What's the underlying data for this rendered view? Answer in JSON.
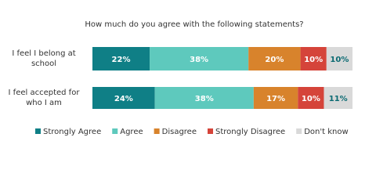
{
  "chart_data": {
    "type": "stacked_bar_horizontal",
    "title": "How much do you agree with the following statements?",
    "categories": [
      "I feel I belong at school",
      "I feel accepted for who I am"
    ],
    "series": [
      {
        "name": "Strongly Agree",
        "color": "#0f7f86",
        "values": [
          22,
          24
        ],
        "value_labels": [
          "22%",
          "24%"
        ]
      },
      {
        "name": "Agree",
        "color": "#5ec9bd",
        "values": [
          38,
          38
        ],
        "value_labels": [
          "38%",
          "38%"
        ]
      },
      {
        "name": "Disagree",
        "color": "#d8832c",
        "values": [
          20,
          17
        ],
        "value_labels": [
          "20%",
          "17%"
        ]
      },
      {
        "name": "Strongly Disagree",
        "color": "#d5443a",
        "values": [
          10,
          10
        ],
        "value_labels": [
          "10%",
          "10%"
        ]
      },
      {
        "name": "Don't know",
        "color": "#d9d9d9",
        "values": [
          10,
          11
        ],
        "value_labels": [
          "10%",
          "11%"
        ]
      }
    ]
  }
}
